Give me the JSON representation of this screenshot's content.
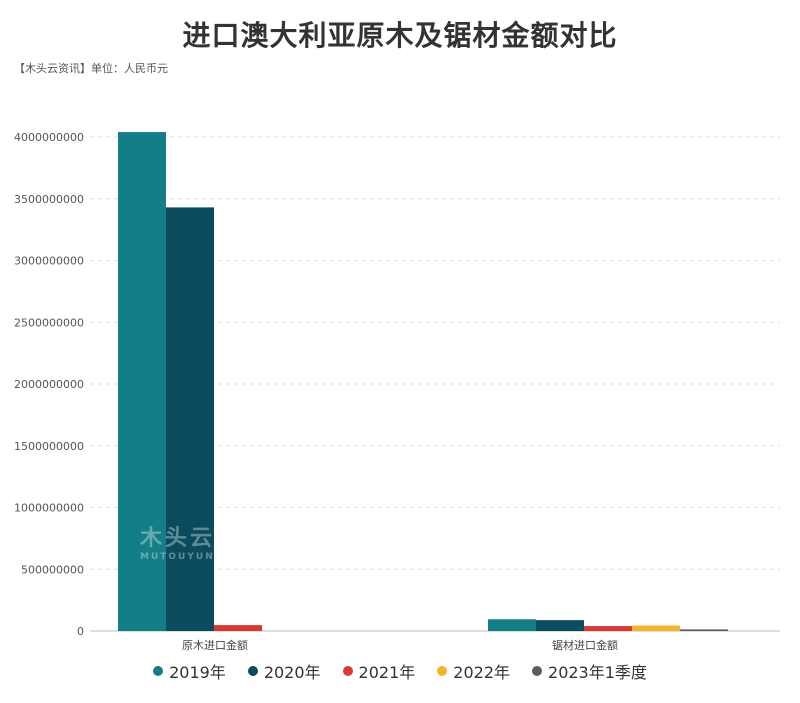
{
  "chart_data": {
    "type": "bar",
    "title": "进口澳大利亚原木及锯材金额对比",
    "subtitle": "【木头云资讯】单位：人民币元",
    "categories": [
      "原木进口金额",
      "锯材进口金额"
    ],
    "series": [
      {
        "name": "2019年",
        "color": "#137e87",
        "values": [
          4040000000,
          95000000
        ]
      },
      {
        "name": "2020年",
        "color": "#0a4b5e",
        "values": [
          3430000000,
          88000000
        ]
      },
      {
        "name": "2021年",
        "color": "#d93a33",
        "values": [
          48000000,
          40000000
        ]
      },
      {
        "name": "2022年",
        "color": "#f4b52e",
        "values": [
          0,
          45000000
        ]
      },
      {
        "name": "2023年1季度",
        "color": "#5f5a5c",
        "values": [
          0,
          13000000
        ]
      }
    ],
    "ylim": [
      0,
      4000000000
    ],
    "yticks": [
      "0",
      "500000000",
      "1000000000",
      "1500000000",
      "2000000000",
      "2500000000",
      "3000000000",
      "3500000000",
      "4000000000"
    ],
    "grid": true,
    "legend_position": "bottom-center"
  },
  "watermark": {
    "cn": "木头云",
    "en": "MUTOUYUN"
  }
}
